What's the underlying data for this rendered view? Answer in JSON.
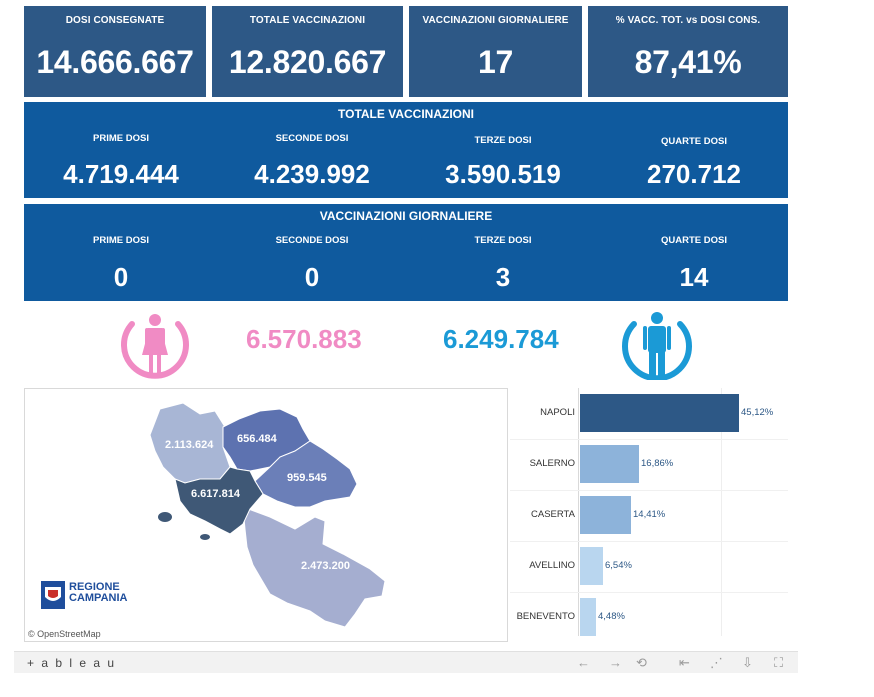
{
  "kpis": [
    {
      "label": "DOSI  CONSEGNATE",
      "value": "14.666.667"
    },
    {
      "label": "TOTALE VACCINAZIONI",
      "value": "12.820.667"
    },
    {
      "label": "VACCINAZIONI GIORNALIERE",
      "value": "17"
    },
    {
      "label": "% VACC. TOT. vs DOSI CONS.",
      "value": "87,41%"
    }
  ],
  "totale": {
    "title": "TOTALE VACCINAZIONI",
    "cols": [
      {
        "label": "PRIME DOSI",
        "value": "4.719.444"
      },
      {
        "label": "SECONDE DOSI",
        "value": "4.239.992"
      },
      {
        "label": "TERZE DOSI",
        "value": "3.590.519"
      },
      {
        "label": "QUARTE DOSI",
        "value": "270.712"
      }
    ]
  },
  "giornaliere": {
    "title": "VACCINAZIONI GIORNALIERE",
    "cols": [
      {
        "label": "PRIME DOSI",
        "value": "0"
      },
      {
        "label": "SECONDE DOSI",
        "value": "0"
      },
      {
        "label": "TERZE DOSI",
        "value": "3"
      },
      {
        "label": "QUARTE DOSI",
        "value": "14"
      }
    ]
  },
  "gender": {
    "female_value": "6.570.883",
    "male_value": "6.249.784",
    "female_color": "#f08bc4",
    "male_color": "#1b9ad6",
    "female_icon": "female-icon",
    "male_icon": "male-icon"
  },
  "map": {
    "provinces": [
      {
        "name": "CASERTA",
        "value": "2.113.624",
        "color": "#a8b6d5"
      },
      {
        "name": "BENEVENTO",
        "value": "656.484",
        "color": "#5d72b0"
      },
      {
        "name": "AVELLINO",
        "value": "959.545",
        "color": "#6b7fb8"
      },
      {
        "name": "NAPOLI",
        "value": "6.617.814",
        "color": "#3f5876"
      },
      {
        "name": "SALERNO",
        "value": "2.473.200",
        "color": "#a5aed0"
      }
    ],
    "logo_line1": "REGIONE",
    "logo_line2": "CAMPANIA",
    "attribution": "© OpenStreetMap"
  },
  "chart_data": {
    "type": "bar",
    "orientation": "horizontal",
    "categories": [
      "NAPOLI",
      "SALERNO",
      "CASERTA",
      "AVELLINO",
      "BENEVENTO"
    ],
    "values": [
      45.12,
      16.86,
      14.41,
      6.54,
      4.48
    ],
    "value_labels": [
      "45,12%",
      "16,86%",
      "14,41%",
      "6,54%",
      "4,48%"
    ],
    "colors": [
      "#2d5886",
      "#8db3da",
      "#8db3da",
      "#b9d6ef",
      "#b9d6ef"
    ]
  },
  "footer": {
    "brand": "+ a b l e a u",
    "icons": [
      "undo-icon",
      "redo-icon",
      "revert-icon",
      "first-icon",
      "share-icon",
      "download-icon",
      "fullscreen-icon"
    ]
  }
}
